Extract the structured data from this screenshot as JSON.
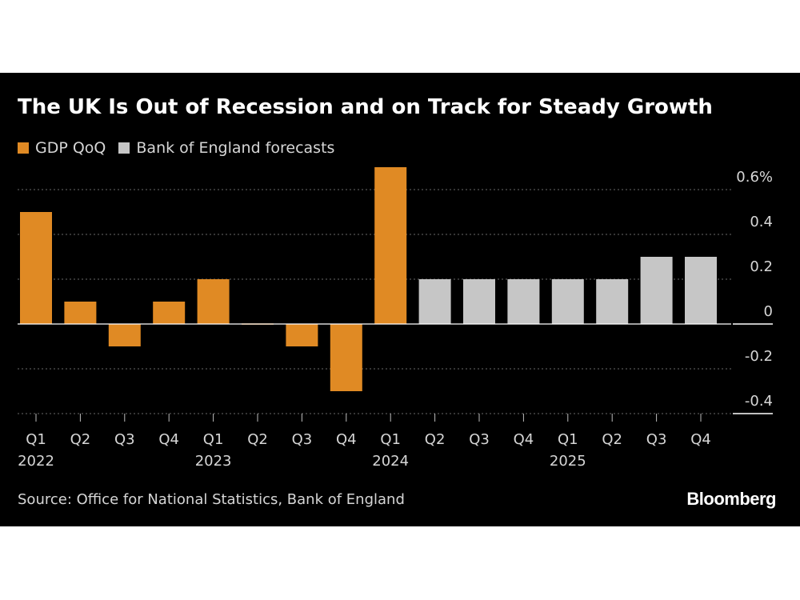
{
  "chart_data": {
    "type": "bar",
    "title": "The UK Is Out of Recession and on Track for Steady Growth",
    "categories": [
      "Q1",
      "Q2",
      "Q3",
      "Q4",
      "Q1",
      "Q2",
      "Q3",
      "Q4",
      "Q1",
      "Q2",
      "Q3",
      "Q4",
      "Q1",
      "Q2",
      "Q3",
      "Q4"
    ],
    "years": [
      "2022",
      "",
      "",
      "",
      "2023",
      "",
      "",
      "",
      "2024",
      "",
      "",
      "",
      "2025",
      "",
      "",
      ""
    ],
    "values": [
      0.5,
      0.1,
      -0.1,
      0.1,
      0.2,
      0.0,
      -0.1,
      -0.3,
      0.7,
      0.2,
      0.2,
      0.2,
      0.2,
      0.2,
      0.3,
      0.3
    ],
    "kind": [
      "actual",
      "actual",
      "actual",
      "actual",
      "actual",
      "actual",
      "actual",
      "actual",
      "actual",
      "forecast",
      "forecast",
      "forecast",
      "forecast",
      "forecast",
      "forecast",
      "forecast"
    ],
    "series": [
      {
        "name": "GDP QoQ",
        "color": "#e08a24"
      },
      {
        "name": "Bank of England forecasts",
        "color": "#c6c6c6"
      }
    ],
    "y_ticks": [
      {
        "value": 0.6,
        "label": "0.6%"
      },
      {
        "value": 0.4,
        "label": "0.4"
      },
      {
        "value": 0.2,
        "label": "0.2"
      },
      {
        "value": 0.0,
        "label": "0"
      },
      {
        "value": -0.2,
        "label": "-0.2"
      },
      {
        "value": -0.4,
        "label": "-0.4"
      }
    ],
    "ylim": [
      -0.4,
      0.7
    ],
    "grid": true,
    "legend_position": "top-left"
  },
  "source": "Source: Office for National Statistics, Bank of England",
  "brand": "Bloomberg"
}
